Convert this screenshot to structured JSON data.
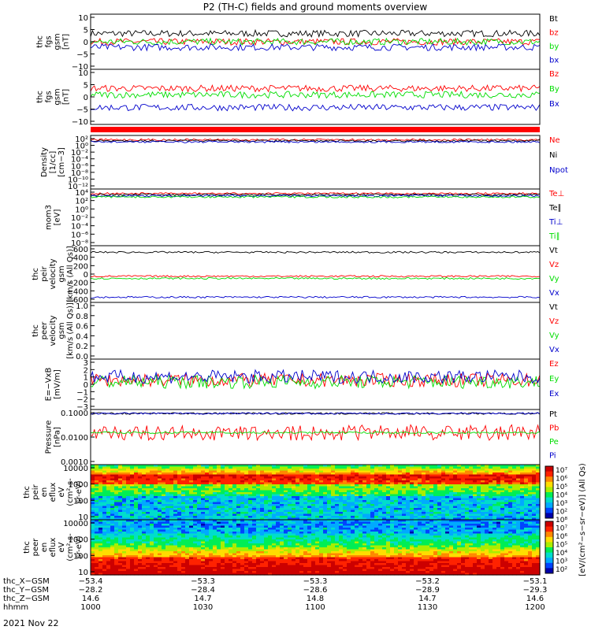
{
  "title": "P2 (TH-C) fields and ground moments overview",
  "date_label": "2021 Nov 22",
  "colors": {
    "black": "#000000",
    "red": "#ff0000",
    "green": "#00dd00",
    "blue": "#0000cc"
  },
  "chart_data": [
    {
      "id": "fgs_gsm",
      "type": "line",
      "ylabel": [
        "thc",
        "fgs",
        "gsm",
        "[nT]"
      ],
      "ylim": [
        -10,
        10
      ],
      "yticks": [
        "10",
        "5",
        "0",
        "−5",
        "−10"
      ],
      "series": [
        {
          "name": "Bt",
          "color": "#000000",
          "level": 3
        },
        {
          "name": "bz",
          "color": "#ff0000",
          "level": 0
        },
        {
          "name": "by",
          "color": "#00dd00",
          "level": 0
        },
        {
          "name": "bx",
          "color": "#0000cc",
          "level": -2
        }
      ]
    },
    {
      "id": "fgs_dsl",
      "type": "line",
      "ylabel": [
        "thc",
        "fgs",
        "gsm",
        "[nT]"
      ],
      "ylim": [
        -14,
        12
      ],
      "yticks": [
        "10",
        "5",
        "0",
        "−5",
        "−10"
      ],
      "series": [
        {
          "name": "Bz",
          "color": "#ff0000",
          "level": 3
        },
        {
          "name": "By",
          "color": "#00dd00",
          "level": 0
        },
        {
          "name": "Bx",
          "color": "#0000cc",
          "level": -6
        }
      ]
    },
    {
      "id": "density",
      "type": "line",
      "ylabel": [
        "Density",
        "[1/cc]",
        "[cm−3]"
      ],
      "ylog": true,
      "yticks": [
        "10²",
        "10⁰",
        "10⁻²",
        "10⁻⁴",
        "10⁻⁶",
        "10⁻⁸",
        "10⁻¹⁰",
        "10⁻¹²"
      ],
      "series": [
        {
          "name": "Ne",
          "color": "#ff0000",
          "level": 1
        },
        {
          "name": "Ni",
          "color": "#000000",
          "level": 1
        },
        {
          "name": "Npot",
          "color": "#0000cc",
          "level": 1
        }
      ]
    },
    {
      "id": "temperature",
      "type": "line",
      "ylabel": [
        "mom3",
        "[eV]"
      ],
      "ylog": true,
      "yticks": [
        "10⁴",
        "10²",
        "10⁰",
        "10⁻²",
        "10⁻⁴",
        "10⁻⁶",
        "10⁻⁸"
      ],
      "series": [
        {
          "name": "Te⊥",
          "color": "#ff0000",
          "level": 2
        },
        {
          "name": "Te∥",
          "color": "#000000",
          "level": 2
        },
        {
          "name": "Ti⊥",
          "color": "#0000cc",
          "level": 3
        },
        {
          "name": "Ti∥",
          "color": "#00dd00",
          "level": 3
        }
      ]
    },
    {
      "id": "ion_velocity",
      "type": "line",
      "ylabel": [
        "thc",
        "peir",
        "velocity",
        "gsm",
        "[km/s (All Qs)]"
      ],
      "ylim": [
        -650,
        650
      ],
      "yticks": [
        "600",
        "400",
        "200",
        "0",
        "−200",
        "−400",
        "−600"
      ],
      "series": [
        {
          "name": "Vt",
          "color": "#000000",
          "level": 500
        },
        {
          "name": "Vz",
          "color": "#ff0000",
          "level": -50
        },
        {
          "name": "Vy",
          "color": "#00dd00",
          "level": -100
        },
        {
          "name": "Vx",
          "color": "#0000cc",
          "level": -530
        }
      ]
    },
    {
      "id": "electron_velocity",
      "type": "line",
      "ylabel": [
        "thc",
        "peer",
        "velocity",
        "gsm",
        "[km/s (All Qs)]"
      ],
      "ylim": [
        0,
        1
      ],
      "yticks": [
        "1.0",
        "0.8",
        "0.6",
        "0.4",
        "0.2",
        "0.0"
      ],
      "series": [
        {
          "name": "Vt",
          "color": "#000000"
        },
        {
          "name": "Vz",
          "color": "#ff0000"
        },
        {
          "name": "Vy",
          "color": "#00dd00"
        },
        {
          "name": "Vx",
          "color": "#0000cc"
        }
      ]
    },
    {
      "id": "efield",
      "type": "line",
      "ylabel": [
        "E=−VxB",
        "[mV/m]"
      ],
      "ylim": [
        -3,
        3
      ],
      "yticks": [
        "3",
        "2",
        "1",
        "0",
        "−1",
        "−2",
        "−3"
      ],
      "series": [
        {
          "name": "Ez",
          "color": "#ff0000",
          "level": 0.5
        },
        {
          "name": "Ey",
          "color": "#00dd00",
          "level": 0.3
        },
        {
          "name": "Ex",
          "color": "#0000cc",
          "level": 0.9
        }
      ]
    },
    {
      "id": "pressure",
      "type": "line",
      "ylabel": [
        "Pressure",
        "[nPa]"
      ],
      "ylog": true,
      "yticks": [
        "0.1000",
        "0.0100",
        "0.0010"
      ],
      "series": [
        {
          "name": "Pt",
          "color": "#000000",
          "level": 0.09
        },
        {
          "name": "Pb",
          "color": "#ff0000",
          "level": 0.02
        },
        {
          "name": "Pe",
          "color": "#00dd00",
          "level": 0.02
        },
        {
          "name": "Pi",
          "color": "#0000cc",
          "level": 0.08
        }
      ]
    },
    {
      "id": "ion_spectrogram",
      "type": "heatmap",
      "ylabel": [
        "thc",
        "peir",
        "en",
        "eflux",
        "eV",
        "(cm²-s-",
        "sr-eV)"
      ],
      "yticks": [
        "10000",
        "1000",
        "100",
        "10"
      ]
    },
    {
      "id": "electron_spectrogram",
      "type": "heatmap",
      "ylabel": [
        "thc",
        "peer",
        "en",
        "eflux",
        "eV",
        "(cm²-s-",
        "sr-eV)"
      ],
      "yticks": [
        "10000",
        "1000",
        "100",
        "10"
      ]
    }
  ],
  "colorbar": {
    "labels": [
      "10⁷",
      "10⁶",
      "10⁵",
      "10⁴",
      "10³",
      "10²",
      "10⁸",
      "10⁷",
      "10⁶",
      "10⁵",
      "10⁴",
      "10³",
      "10²"
    ],
    "unit": "[eV/(cm²−s−sr−eV)] (All Qs)"
  },
  "xaxis": {
    "rows": [
      {
        "label": "thc_X−GSM",
        "values": [
          "−53.4",
          "−53.3",
          "−53.3",
          "−53.2",
          "−53.1"
        ]
      },
      {
        "label": "thc_Y−GSM",
        "values": [
          "−28.2",
          "−28.4",
          "−28.6",
          "−28.9",
          "−29.3"
        ]
      },
      {
        "label": "thc_Z−GSM",
        "values": [
          "14.6",
          "14.7",
          "14.8",
          "14.7",
          "14.6"
        ]
      },
      {
        "label": "hhmm",
        "values": [
          "1000",
          "1030",
          "1100",
          "1130",
          "1200"
        ]
      }
    ]
  }
}
